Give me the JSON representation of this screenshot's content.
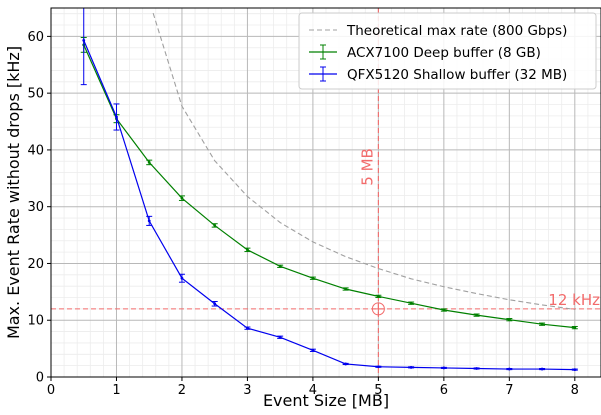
{
  "chart_data": {
    "type": "line",
    "xlabel": "Event Size [MB]",
    "ylabel": "Max. Event Rate without drops [kHz]",
    "xlim": [
      0,
      8.4
    ],
    "ylim": [
      0,
      65
    ],
    "xticks": [
      0,
      1,
      2,
      3,
      4,
      5,
      6,
      7,
      8
    ],
    "yticks": [
      0,
      10,
      20,
      30,
      40,
      50,
      60
    ],
    "grid": true,
    "legend_position": "top-right",
    "series": [
      {
        "name": "Theoretical max rate (800 Gbps)",
        "color": "#a0a0a0",
        "style": "dashed",
        "x": [
          1.56,
          2.0,
          2.5,
          3.0,
          3.5,
          4.0,
          4.5,
          5.0,
          5.5,
          6.0,
          6.5,
          7.0,
          7.5,
          8.0
        ],
        "y": [
          64.1,
          47.7,
          38.1,
          31.8,
          27.2,
          23.8,
          21.2,
          19.1,
          17.3,
          15.9,
          14.7,
          13.6,
          12.7,
          11.9
        ]
      },
      {
        "name": "ACX7100 Deep buffer (8 GB)",
        "color": "#008000",
        "style": "solid",
        "x": [
          0.5,
          1.0,
          1.5,
          2.0,
          2.5,
          3.0,
          3.5,
          4.0,
          4.5,
          5.0,
          5.5,
          6.0,
          6.5,
          7.0,
          7.5,
          8.0
        ],
        "y": [
          58.5,
          45.5,
          37.8,
          31.5,
          26.7,
          22.4,
          19.5,
          17.4,
          15.5,
          14.2,
          13.0,
          11.8,
          10.9,
          10.1,
          9.3,
          8.7
        ],
        "err": [
          1.3,
          0.7,
          0.4,
          0.4,
          0.3,
          0.3,
          0.2,
          0.2,
          0.2,
          0.2,
          0.2,
          0.2,
          0.2,
          0.2,
          0.2,
          0.2
        ]
      },
      {
        "name": "QFX5120 Shallow buffer (32 MB)",
        "color": "#0000ee",
        "style": "solid",
        "x": [
          0.5,
          1.0,
          1.5,
          2.0,
          2.5,
          3.0,
          3.5,
          4.0,
          4.5,
          5.0,
          5.5,
          6.0,
          6.5,
          7.0,
          7.5,
          8.0
        ],
        "y": [
          59.3,
          45.8,
          27.5,
          17.4,
          12.9,
          8.6,
          7.0,
          4.7,
          2.3,
          1.8,
          1.7,
          1.6,
          1.5,
          1.4,
          1.4,
          1.3
        ],
        "err": [
          7.8,
          2.3,
          0.8,
          0.7,
          0.4,
          0.2,
          0.2,
          0.2,
          0.1,
          0.1,
          0.1,
          0.1,
          0.1,
          0.1,
          0.1,
          0.1
        ]
      }
    ],
    "annotations": [
      {
        "type": "vline",
        "x": 5,
        "label": "5 MB",
        "color": "#f26b6b"
      },
      {
        "type": "hline",
        "y": 12,
        "label": "12 kHz",
        "color": "#f26b6b"
      },
      {
        "type": "circle-marker",
        "x": 5,
        "y": 12,
        "color": "#f26b6b"
      }
    ]
  }
}
